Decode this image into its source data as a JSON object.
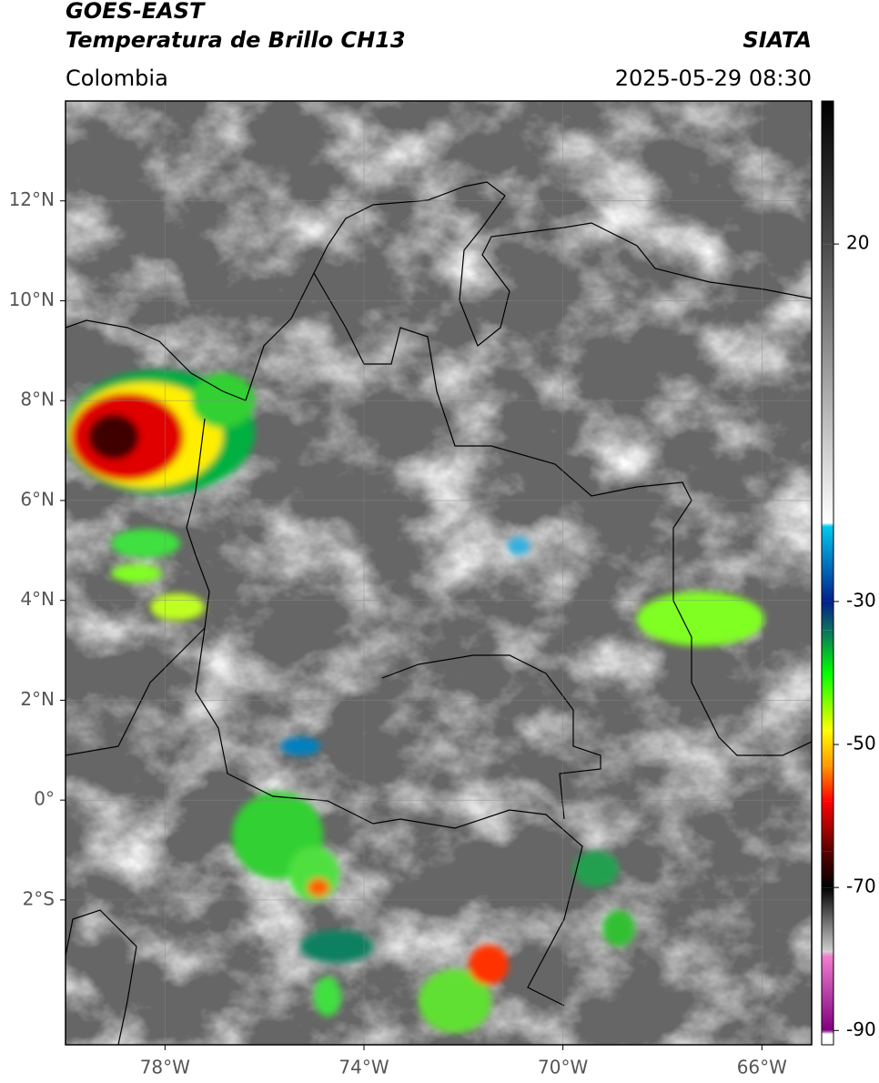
{
  "header": {
    "title": "GOES-EAST",
    "subtitle": "Temperatura de Brillo CH13",
    "source": "SIATA",
    "region": "Colombia",
    "datetime": "2025-05-29 08:30"
  },
  "map": {
    "xlim": [
      -80,
      -65
    ],
    "ylim": [
      -4.9,
      14
    ],
    "grid": true,
    "xticks": [
      {
        "value": -78,
        "label": "78°W"
      },
      {
        "value": -74,
        "label": "74°W"
      },
      {
        "value": -70,
        "label": "70°W"
      },
      {
        "value": -66,
        "label": "66°W"
      }
    ],
    "yticks": [
      {
        "value": 12,
        "label": "12°N"
      },
      {
        "value": 10,
        "label": "10°N"
      },
      {
        "value": 8,
        "label": "8°N"
      },
      {
        "value": 6,
        "label": "6°N"
      },
      {
        "value": 4,
        "label": "4°N"
      },
      {
        "value": 2,
        "label": "2°N"
      },
      {
        "value": 0,
        "label": "0°"
      },
      {
        "value": -2,
        "label": "2°S"
      }
    ]
  },
  "colorbar": {
    "lim": [
      -92,
      40
    ],
    "ticks": [
      20,
      -30,
      -50,
      -70,
      -90
    ],
    "colormap": [
      {
        "value": 40,
        "color": "#000000"
      },
      {
        "value": 20,
        "color": "#4a4a4a"
      },
      {
        "value": -19,
        "color": "#ffffff"
      },
      {
        "value": -19.5,
        "color": "#00c8f0"
      },
      {
        "value": -30,
        "color": "#00208c"
      },
      {
        "value": -34,
        "color": "#0a7060"
      },
      {
        "value": -40,
        "color": "#00ff00"
      },
      {
        "value": -48,
        "color": "#ffff00"
      },
      {
        "value": -53,
        "color": "#ff9900"
      },
      {
        "value": -58,
        "color": "#ff0000"
      },
      {
        "value": -65,
        "color": "#5a0000"
      },
      {
        "value": -70,
        "color": "#000000"
      },
      {
        "value": -79,
        "color": "#d0d0d0"
      },
      {
        "value": -79.5,
        "color": "#f080d0"
      },
      {
        "value": -90,
        "color": "#800080"
      },
      {
        "value": -90.5,
        "color": "#ffffff"
      },
      {
        "value": -92,
        "color": "#ffffff"
      }
    ]
  }
}
